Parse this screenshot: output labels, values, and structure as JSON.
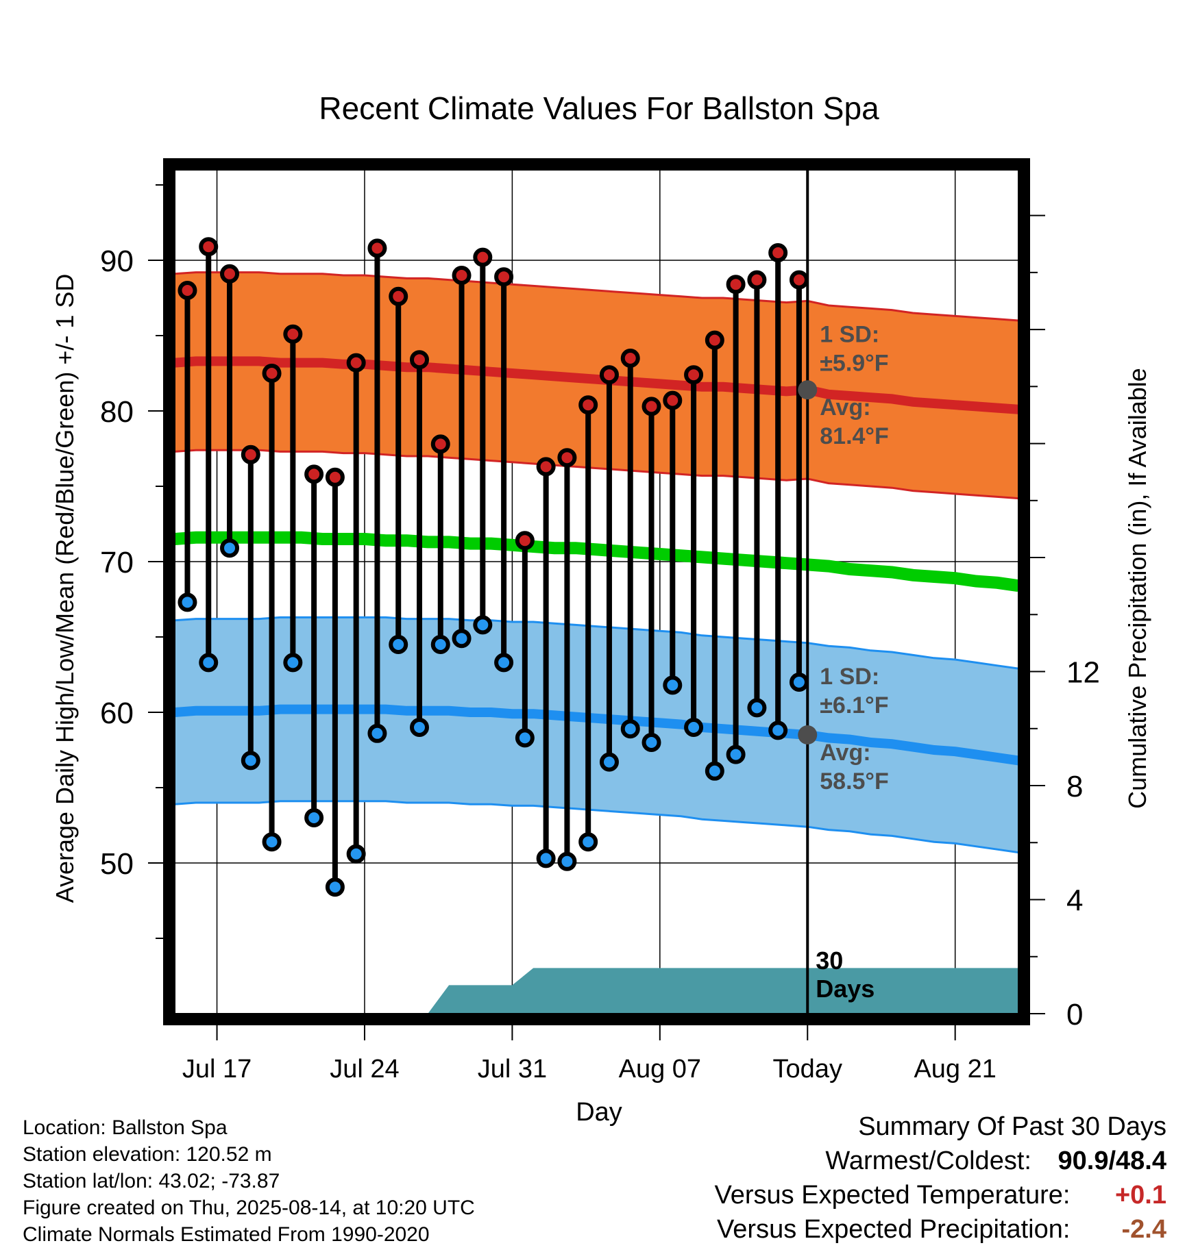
{
  "chart_data": {
    "type": "line",
    "title": "Recent Climate Values For Ballston Spa",
    "xlabel": "Day",
    "ylabel": "Average Daily High/Low/Mean (Red/Blue/Green) +/- 1 SD",
    "ylabel_right": "Cumulative Precipitation (in), If Available",
    "ylim": [
      40,
      96
    ],
    "y2lim": [
      0,
      29.6
    ],
    "yticks": [
      50,
      60,
      70,
      80,
      90
    ],
    "y2ticks": [
      0,
      4,
      8,
      12
    ],
    "x_tick_labels": [
      "Jul 17",
      "Jul 24",
      "Jul 31",
      "Aug 07",
      "Today",
      "Aug 21"
    ],
    "x_day_index_range": [
      0,
      40
    ],
    "x_tick_day_index": [
      2,
      9,
      16,
      23,
      30,
      37
    ],
    "today_day_index": 30,
    "grid": true,
    "daily_high": [
      88.0,
      90.9,
      89.1,
      77.1,
      82.5,
      85.1,
      75.8,
      75.6,
      83.2,
      90.8,
      87.6,
      83.4,
      77.8,
      89.0,
      90.2,
      88.9,
      71.4,
      76.3,
      76.9,
      80.4,
      82.4,
      83.5,
      80.3,
      80.7,
      82.4,
      84.7,
      88.4,
      88.7,
      90.5,
      88.7
    ],
    "daily_low": [
      67.3,
      63.3,
      70.9,
      56.8,
      51.4,
      63.3,
      53.0,
      48.4,
      50.6,
      58.6,
      64.5,
      59.0,
      64.5,
      64.9,
      65.8,
      63.3,
      58.3,
      50.3,
      50.1,
      51.4,
      56.7,
      58.9,
      58.0,
      61.8,
      59.0,
      56.1,
      57.2,
      60.3,
      58.8,
      62.0
    ],
    "normal_high_avg": [
      83.2,
      83.3,
      83.3,
      83.3,
      83.3,
      83.2,
      83.2,
      83.2,
      83.1,
      83.1,
      83.0,
      82.9,
      82.9,
      82.8,
      82.7,
      82.6,
      82.5,
      82.4,
      82.3,
      82.2,
      82.1,
      82.0,
      81.9,
      81.8,
      81.7,
      81.6,
      81.6,
      81.5,
      81.4,
      81.3,
      81.4,
      81.1,
      81.0,
      80.9,
      80.8,
      80.6,
      80.5,
      80.4,
      80.3,
      80.2,
      80.1
    ],
    "normal_mean": [
      71.5,
      71.6,
      71.6,
      71.6,
      71.6,
      71.6,
      71.6,
      71.5,
      71.5,
      71.5,
      71.4,
      71.4,
      71.3,
      71.3,
      71.2,
      71.2,
      71.1,
      71.0,
      70.9,
      70.9,
      70.8,
      70.7,
      70.6,
      70.5,
      70.4,
      70.3,
      70.2,
      70.1,
      70.0,
      69.9,
      69.8,
      69.7,
      69.5,
      69.4,
      69.3,
      69.1,
      69.0,
      68.9,
      68.7,
      68.6,
      68.4
    ],
    "normal_low_avg": [
      60.0,
      60.1,
      60.1,
      60.1,
      60.1,
      60.2,
      60.2,
      60.2,
      60.2,
      60.2,
      60.2,
      60.1,
      60.1,
      60.1,
      60.0,
      60.0,
      59.9,
      59.9,
      59.8,
      59.7,
      59.6,
      59.5,
      59.4,
      59.3,
      59.2,
      59.0,
      58.9,
      58.8,
      58.7,
      58.6,
      58.5,
      58.3,
      58.2,
      58.0,
      57.9,
      57.7,
      57.5,
      57.4,
      57.2,
      57.0,
      56.8
    ],
    "high_sd_band": {
      "label": "1 SD:",
      "value": "±5.9°F"
    },
    "low_sd_band": {
      "label": "1 SD:",
      "value": "±6.1°F"
    },
    "today_high_avg": {
      "label": "Avg:",
      "value": "81.4°F"
    },
    "today_low_avg": {
      "label": "Avg:",
      "value": "58.5°F"
    },
    "high_sd": 5.9,
    "low_sd": 6.1,
    "cumulative_precip_in": [
      0,
      0,
      0,
      0,
      0,
      0,
      0,
      0,
      0,
      0,
      0,
      0,
      0.0,
      1.0,
      1.0,
      1.0,
      1.0,
      1.6,
      1.6,
      1.6,
      1.6,
      1.6,
      1.6,
      1.6,
      1.6,
      1.6,
      1.6,
      1.6,
      1.6,
      1.6,
      1.6,
      1.6,
      1.6,
      1.6,
      1.6,
      1.6,
      1.6,
      1.6,
      1.6,
      1.6,
      1.6
    ],
    "precip_label": [
      "30",
      "Days"
    ],
    "colors": {
      "high_band": "#f27a2e",
      "high_line": "#d22424",
      "low_band": "#85c1e8",
      "low_line": "#1e8ff0",
      "mean_line": "#00cc00",
      "precip_fill": "#4a9aa4",
      "high_point": "#cc2222",
      "low_point": "#2596f0",
      "annotation_text": "#4d4d4d"
    }
  },
  "footer": {
    "location": "Location: Ballston Spa",
    "elevation": "Station elevation: 120.52 m",
    "latlon": "Station lat/lon: 43.02; -73.87",
    "created": "Figure created on Thu, 2025-08-14, at 10:20 UTC",
    "normals": "Climate Normals Estimated From 1990-2020"
  },
  "summary": {
    "title": "Summary Of Past 30 Days",
    "warmest_coldest_label": "Warmest/Coldest:",
    "warmest_coldest_value": "90.9/48.4",
    "temp_label": "Versus Expected Temperature:",
    "temp_value": "+0.1",
    "temp_color": "#c62828",
    "precip_label": "Versus Expected Precipitation:",
    "precip_value": "-2.4",
    "precip_color": "#a0522d"
  }
}
